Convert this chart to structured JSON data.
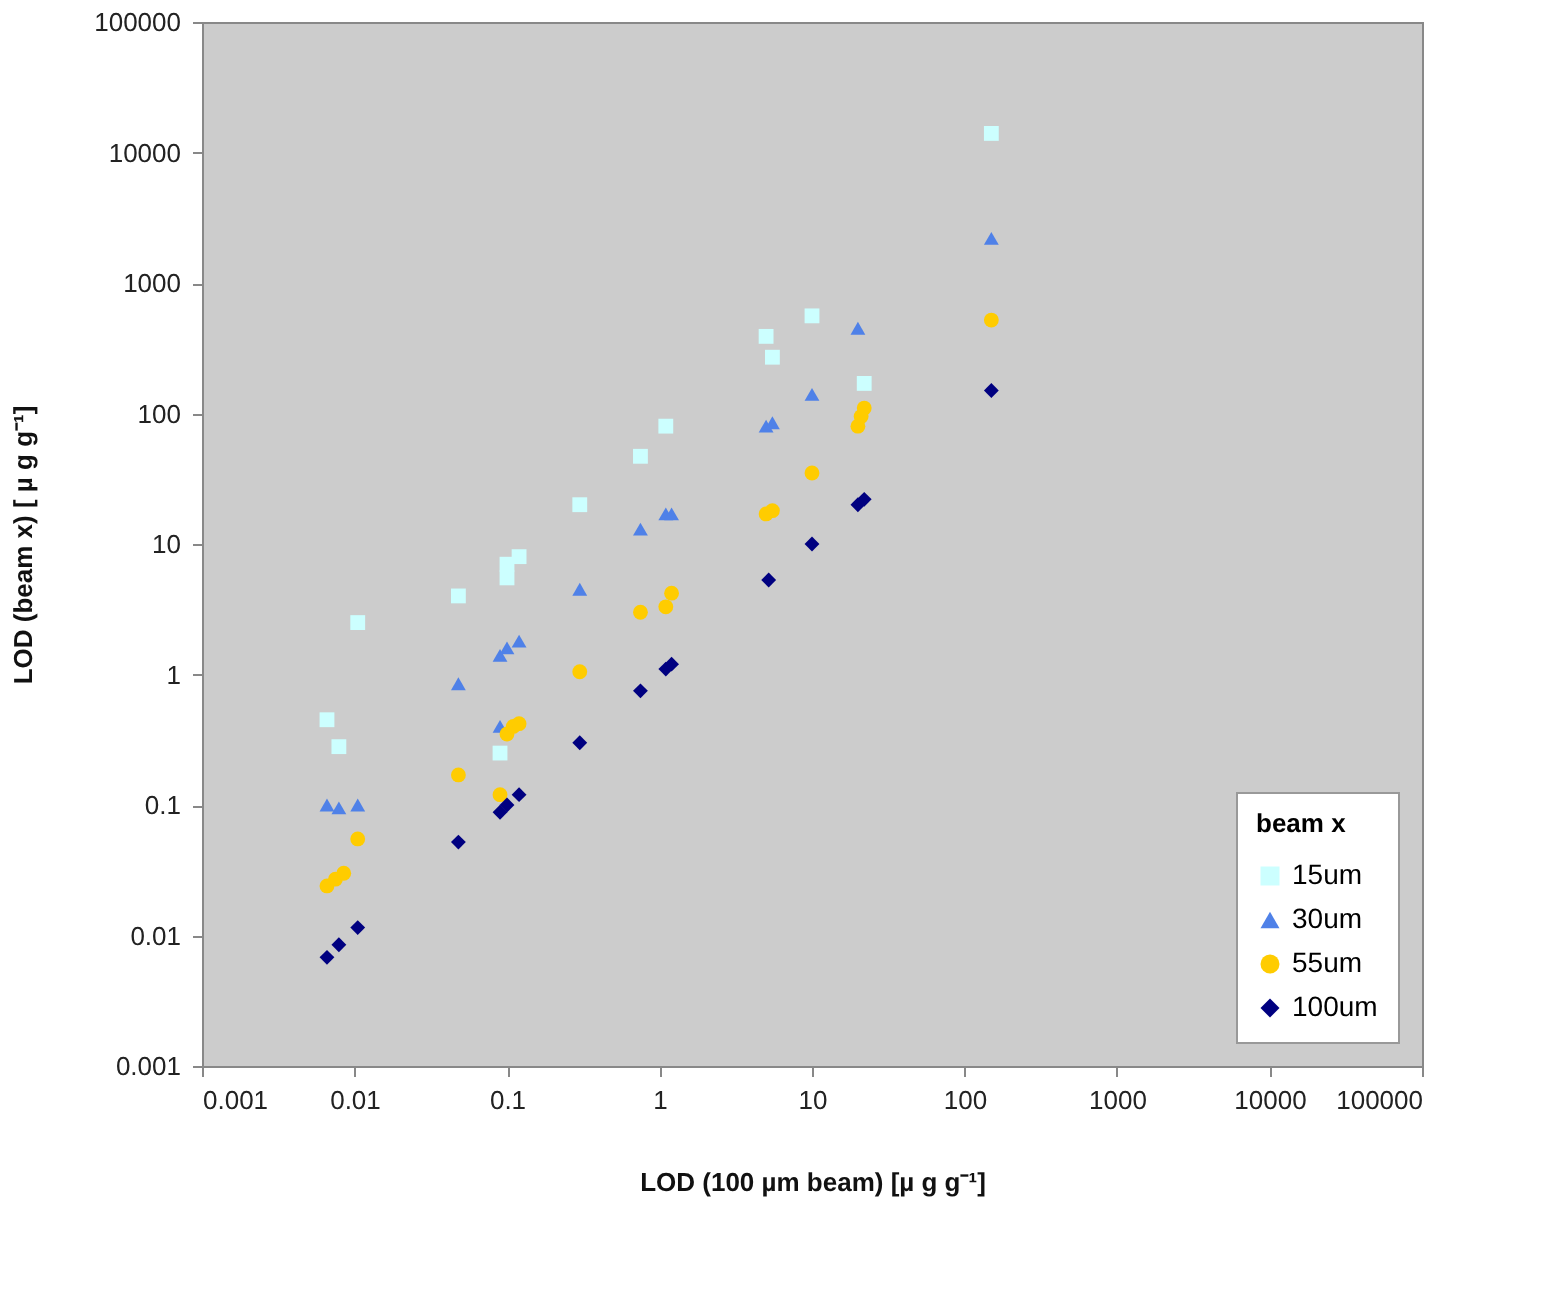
{
  "chart_data": {
    "type": "scatter",
    "xlabel": "LOD (100 µm beam) [µ g g⁻¹]",
    "ylabel": "LOD (beam x) [ µ g g⁻¹]",
    "legend_title": "beam x",
    "log": "xy",
    "xlim": [
      0.001,
      100000
    ],
    "ylim": [
      0.001,
      100000
    ],
    "xticks": [
      0.001,
      0.01,
      0.1,
      1,
      10,
      100,
      1000,
      10000,
      100000
    ],
    "yticks": [
      0.001,
      0.01,
      0.1,
      1,
      10,
      100,
      1000,
      10000,
      100000
    ],
    "grid": false,
    "legend": "bottom right",
    "series": [
      {
        "name": "15um",
        "color": "#ccffff",
        "marker": "square",
        "x": [
          0.0066,
          0.0079,
          0.0105,
          0.048,
          0.09,
          0.1,
          0.1,
          0.12,
          0.3,
          0.75,
          1.1,
          5,
          5.5,
          10,
          22,
          150
        ],
        "values": [
          0.45,
          0.28,
          2.5,
          4,
          0.25,
          5.5,
          7,
          8,
          20,
          47,
          80,
          390,
          270,
          560,
          170,
          14000
        ]
      },
      {
        "name": "30um",
        "color": "#4f81e8",
        "marker": "triangle",
        "x": [
          0.0066,
          0.0079,
          0.0105,
          0.048,
          0.09,
          0.09,
          0.1,
          0.12,
          0.3,
          0.75,
          1.1,
          1.2,
          5,
          5.5,
          10,
          20,
          150
        ],
        "values": [
          0.1,
          0.095,
          0.1,
          0.85,
          0.4,
          1.4,
          1.6,
          1.8,
          4.5,
          13,
          17,
          17,
          80,
          85,
          140,
          450,
          2200
        ]
      },
      {
        "name": "55um",
        "color": "#ffcc00",
        "marker": "circle",
        "x": [
          0.0066,
          0.0075,
          0.0085,
          0.0105,
          0.048,
          0.09,
          0.1,
          0.11,
          0.12,
          0.3,
          0.75,
          1.1,
          1.2,
          5,
          5.5,
          10,
          20,
          21,
          22,
          150
        ],
        "values": [
          0.024,
          0.027,
          0.03,
          0.055,
          0.17,
          0.12,
          0.35,
          0.4,
          0.42,
          1.05,
          3,
          3.3,
          4.2,
          17,
          18,
          35,
          80,
          95,
          110,
          520
        ]
      },
      {
        "name": "100um",
        "color": "#000080",
        "marker": "diamond",
        "x": [
          0.0066,
          0.0079,
          0.0105,
          0.048,
          0.09,
          0.1,
          0.12,
          0.3,
          0.75,
          1.1,
          1.2,
          5.2,
          10,
          20,
          22,
          150
        ],
        "values": [
          0.0068,
          0.0085,
          0.0115,
          0.052,
          0.088,
          0.1,
          0.12,
          0.3,
          0.75,
          1.1,
          1.2,
          5.3,
          10,
          20,
          22,
          150
        ]
      }
    ]
  }
}
